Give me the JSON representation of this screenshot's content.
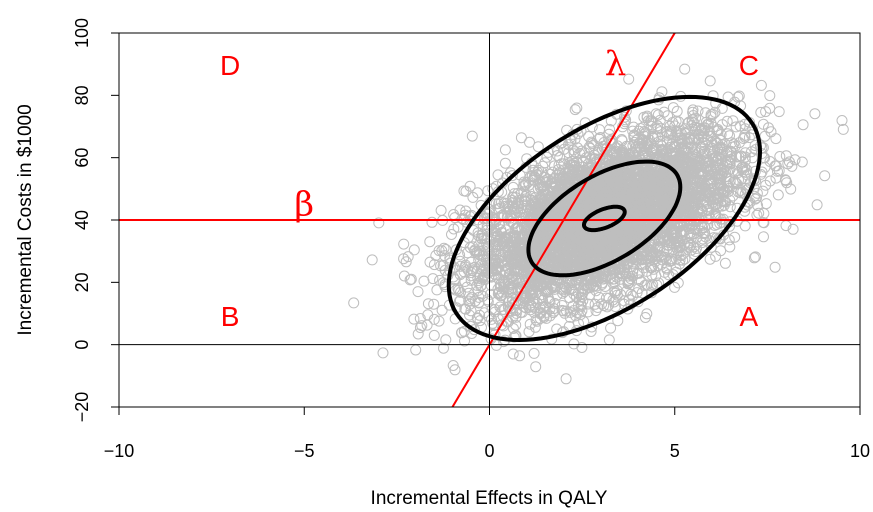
{
  "chart_data": {
    "type": "scatter",
    "title": "",
    "xlabel": "Incremental Effects in QALY",
    "ylabel": "Incremental Costs in $1000",
    "xlim": [
      -10,
      10
    ],
    "ylim": [
      -20,
      100
    ],
    "x_ticks": [
      "−10",
      "−5",
      "0",
      "5",
      "10"
    ],
    "y_ticks": [
      "−20",
      "0",
      "20",
      "40",
      "60",
      "80",
      "100"
    ],
    "grid": false,
    "colors": {
      "points": "#bebebe",
      "reference_lines": "#ff0000",
      "ellipses": "#000000",
      "labels": "#ff0000"
    },
    "scatter": {
      "approx_count": 5000,
      "center": {
        "x": 3.1,
        "y": 40.5
      },
      "sd": {
        "x": 1.8,
        "y": 14
      },
      "correlation": 0.55,
      "x_range": [
        -3.7,
        10
      ],
      "y_range": [
        -18,
        96
      ]
    },
    "ellipses": [
      {
        "level": "inner",
        "center": {
          "x": 3.1,
          "y": 40.5
        },
        "x_extent": [
          2.5,
          3.6
        ],
        "y_extent": [
          37,
          44.5
        ]
      },
      {
        "level": "middle",
        "center": {
          "x": 3.1,
          "y": 40.5
        },
        "x_extent": [
          1.0,
          5.1
        ],
        "y_extent": [
          23,
          59.5
        ]
      },
      {
        "level": "outer",
        "center": {
          "x": 3.1,
          "y": 40.5
        },
        "x_extent": [
          -1.1,
          7.3
        ],
        "y_extent": [
          1,
          79
        ]
      }
    ],
    "reference_lines": [
      {
        "name": "β",
        "type": "horizontal",
        "y": 40
      },
      {
        "name": "λ",
        "type": "line",
        "from": {
          "x": -1.0,
          "y": -20
        },
        "to": {
          "x": 5.0,
          "y": 100
        }
      },
      {
        "type": "horizontal",
        "y": 0,
        "color": "#000000"
      },
      {
        "type": "vertical",
        "x": 0,
        "color": "#000000"
      }
    ],
    "annotations": [
      {
        "text": "D",
        "x": -7.0,
        "y": 89.5
      },
      {
        "text": "C",
        "x": 7.0,
        "y": 89.5
      },
      {
        "text": "B",
        "x": -7.0,
        "y": 9
      },
      {
        "text": "A",
        "x": 7.0,
        "y": 9
      },
      {
        "text": "λ",
        "x": 3.4,
        "y": 90
      },
      {
        "text": "β",
        "x": -5.0,
        "y": 45
      }
    ]
  }
}
